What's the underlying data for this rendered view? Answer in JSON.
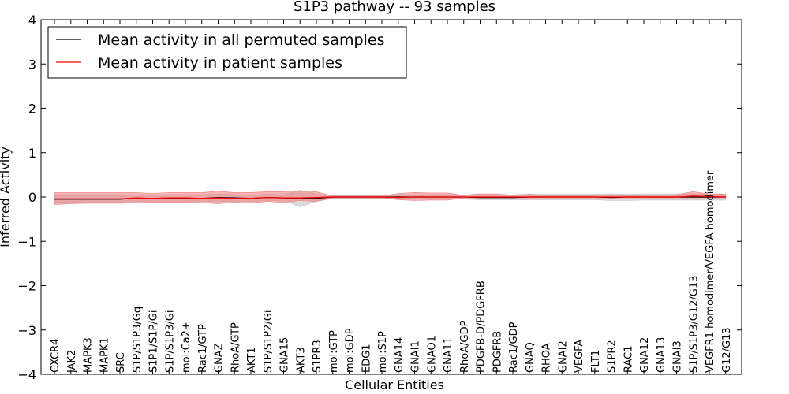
{
  "chart_data": {
    "type": "line",
    "title": "S1P3 pathway -- 93 samples",
    "xlabel": "Cellular Entities",
    "ylabel": "Inferred Activity",
    "ylim": [
      -4,
      4
    ],
    "yticks": [
      4,
      3,
      2,
      1,
      0,
      -1,
      -2,
      -3,
      -4
    ],
    "ytick_labels": [
      "4",
      "3",
      "2",
      "1",
      "0",
      "−1",
      "−2",
      "−3",
      "−4"
    ],
    "legend_position": "top-left",
    "categories": [
      "CXCR4",
      "JAK2",
      "MAPK3",
      "MAPK1",
      "SRC",
      "S1P/S1P3/Gq",
      "S1P1/S1P/Gi",
      "S1P/S1P3/Gi",
      "mol:Ca2+",
      "Rac1/GTP",
      "GNAZ",
      "RhoA/GTP",
      "AKT1",
      "S1P/S1P2/Gi",
      "GNA15",
      "AKT3",
      "S1PR3",
      "mol:GTP",
      "mol:GDP",
      "EDG1",
      "mol:S1P",
      "GNA14",
      "GNAI1",
      "GNAO1",
      "GNA11",
      "RhoA/GDP",
      "PDGFB-D/PDGFRB",
      "PDGFRB",
      "Rac1/GDP",
      "GNAQ",
      "RHOA",
      "GNAI2",
      "VEGFA",
      "FLT1",
      "S1PR2",
      "RAC1",
      "GNA12",
      "GNA13",
      "GNAI3",
      "S1P/S1P3/G12/G13",
      "VEGFR1 homodimer/VEGFA homodimer",
      "G12/G13"
    ],
    "series": [
      {
        "name": "Mean activity in all permuted samples",
        "color": "#000000",
        "band_color": "#bfbfbf",
        "values": [
          -0.05,
          -0.05,
          -0.05,
          -0.05,
          -0.05,
          -0.03,
          -0.04,
          -0.03,
          -0.03,
          -0.03,
          -0.01,
          -0.02,
          -0.03,
          -0.01,
          -0.02,
          -0.04,
          -0.03,
          0.0,
          0.0,
          0.0,
          0.0,
          0.0,
          0.0,
          0.0,
          0.0,
          0.0,
          -0.01,
          -0.01,
          -0.01,
          0.0,
          0.0,
          0.0,
          0.0,
          0.0,
          -0.01,
          0.0,
          0.0,
          0.0,
          0.0,
          0.0,
          0.0,
          0.0
        ],
        "lower": [
          -0.12,
          -0.12,
          -0.12,
          -0.12,
          -0.12,
          -0.1,
          -0.1,
          -0.1,
          -0.1,
          -0.1,
          -0.1,
          -0.1,
          -0.1,
          -0.08,
          -0.08,
          -0.22,
          -0.1,
          -0.03,
          -0.03,
          -0.03,
          -0.03,
          -0.03,
          -0.03,
          -0.03,
          -0.03,
          -0.05,
          -0.06,
          -0.06,
          -0.06,
          -0.06,
          -0.06,
          -0.06,
          -0.06,
          -0.06,
          -0.08,
          -0.08,
          -0.07,
          -0.07,
          -0.07,
          -0.07,
          -0.07,
          -0.07
        ],
        "upper": [
          0.03,
          0.03,
          0.03,
          0.03,
          0.03,
          0.05,
          0.04,
          0.05,
          0.05,
          0.05,
          0.07,
          0.05,
          0.04,
          0.06,
          0.05,
          0.15,
          0.06,
          0.03,
          0.03,
          0.03,
          0.03,
          0.03,
          0.03,
          0.03,
          0.03,
          0.05,
          0.05,
          0.05,
          0.05,
          0.06,
          0.06,
          0.06,
          0.06,
          0.06,
          0.07,
          0.06,
          0.07,
          0.07,
          0.07,
          0.07,
          0.07,
          0.07
        ]
      },
      {
        "name": "Mean activity in patient samples",
        "color": "#ff0000",
        "band_color": "#f08080",
        "values": [
          -0.04,
          -0.04,
          -0.04,
          -0.04,
          -0.04,
          -0.02,
          -0.03,
          -0.02,
          -0.02,
          -0.03,
          -0.02,
          -0.03,
          -0.03,
          -0.01,
          -0.02,
          -0.02,
          -0.01,
          0.0,
          0.0,
          0.0,
          0.0,
          -0.01,
          0.0,
          0.0,
          0.0,
          0.0,
          0.0,
          0.0,
          0.0,
          0.0,
          0.0,
          0.0,
          0.0,
          0.0,
          0.0,
          0.0,
          0.0,
          0.0,
          0.0,
          0.02,
          0.01,
          0.0
        ],
        "lower": [
          -0.17,
          -0.15,
          -0.14,
          -0.14,
          -0.14,
          -0.13,
          -0.12,
          -0.12,
          -0.12,
          -0.13,
          -0.15,
          -0.12,
          -0.14,
          -0.1,
          -0.12,
          -0.08,
          -0.1,
          -0.02,
          -0.02,
          -0.02,
          -0.02,
          -0.06,
          -0.08,
          -0.07,
          -0.07,
          -0.02,
          -0.02,
          -0.02,
          -0.02,
          -0.02,
          -0.02,
          -0.02,
          -0.02,
          -0.02,
          -0.02,
          -0.02,
          -0.02,
          -0.02,
          -0.02,
          -0.02,
          -0.02,
          -0.02
        ],
        "upper": [
          0.1,
          0.1,
          0.1,
          0.1,
          0.1,
          0.1,
          0.08,
          0.1,
          0.1,
          0.1,
          0.13,
          0.1,
          0.1,
          0.12,
          0.12,
          0.14,
          0.12,
          0.02,
          0.02,
          0.02,
          0.02,
          0.08,
          0.1,
          0.09,
          0.09,
          0.04,
          0.07,
          0.07,
          0.04,
          0.06,
          0.04,
          0.04,
          0.04,
          0.04,
          0.04,
          0.04,
          0.04,
          0.04,
          0.05,
          0.12,
          0.07,
          0.06
        ]
      }
    ]
  }
}
